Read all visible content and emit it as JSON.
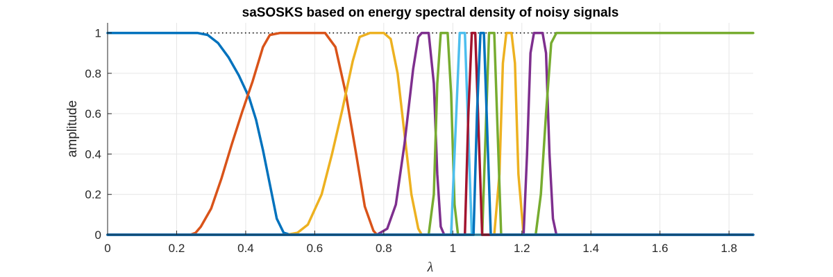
{
  "chart_data": {
    "type": "line",
    "title": "saSOSKS based on energy spectral density of noisy signals",
    "xlabel": "λ",
    "ylabel": "amplitude",
    "xlim": [
      0,
      1.87
    ],
    "ylim": [
      0,
      1.05
    ],
    "xticks": [
      "0",
      "0.2",
      "0.4",
      "0.6",
      "0.8",
      "1",
      "1.2",
      "1.4",
      "1.6",
      "1.8"
    ],
    "yticks": [
      "0",
      "0.2",
      "0.4",
      "0.6",
      "0.8",
      "1"
    ],
    "grid": true,
    "legend": "none",
    "reference_line": {
      "y": 1,
      "style": "dotted",
      "color": "#000000"
    },
    "series": [
      {
        "color": "#0072BD",
        "points": [
          [
            0,
            1
          ],
          [
            0.26,
            1
          ],
          [
            0.29,
            0.99
          ],
          [
            0.32,
            0.95
          ],
          [
            0.35,
            0.88
          ],
          [
            0.38,
            0.79
          ],
          [
            0.41,
            0.68
          ],
          [
            0.43,
            0.57
          ],
          [
            0.45,
            0.42
          ],
          [
            0.47,
            0.25
          ],
          [
            0.49,
            0.08
          ],
          [
            0.51,
            0.01
          ],
          [
            0.53,
            0
          ],
          [
            1.87,
            0
          ]
        ]
      },
      {
        "color": "#D95319",
        "points": [
          [
            0,
            0
          ],
          [
            0.24,
            0
          ],
          [
            0.255,
            0.01
          ],
          [
            0.27,
            0.04
          ],
          [
            0.3,
            0.13
          ],
          [
            0.33,
            0.28
          ],
          [
            0.36,
            0.45
          ],
          [
            0.39,
            0.61
          ],
          [
            0.42,
            0.76
          ],
          [
            0.45,
            0.93
          ],
          [
            0.47,
            0.99
          ],
          [
            0.5,
            1
          ],
          [
            0.63,
            1
          ],
          [
            0.66,
            0.93
          ],
          [
            0.69,
            0.7
          ],
          [
            0.72,
            0.4
          ],
          [
            0.745,
            0.14
          ],
          [
            0.77,
            0.02
          ],
          [
            0.78,
            0
          ],
          [
            1.87,
            0
          ]
        ]
      },
      {
        "color": "#EDB120",
        "points": [
          [
            0,
            0
          ],
          [
            0.52,
            0
          ],
          [
            0.55,
            0.01
          ],
          [
            0.58,
            0.05
          ],
          [
            0.62,
            0.2
          ],
          [
            0.65,
            0.4
          ],
          [
            0.68,
            0.62
          ],
          [
            0.71,
            0.86
          ],
          [
            0.73,
            0.98
          ],
          [
            0.76,
            1
          ],
          [
            0.8,
            1
          ],
          [
            0.82,
            0.97
          ],
          [
            0.84,
            0.8
          ],
          [
            0.86,
            0.5
          ],
          [
            0.88,
            0.2
          ],
          [
            0.9,
            0.03
          ],
          [
            0.91,
            0
          ],
          [
            1.12,
            0
          ],
          [
            1.135,
            0.3
          ],
          [
            1.145,
            0.85
          ],
          [
            1.155,
            1
          ],
          [
            1.17,
            1
          ],
          [
            1.18,
            0.85
          ],
          [
            1.19,
            0.3
          ],
          [
            1.205,
            0
          ],
          [
            1.87,
            0
          ]
        ]
      },
      {
        "color": "#7E2F8E",
        "points": [
          [
            0,
            0
          ],
          [
            0.78,
            0
          ],
          [
            0.81,
            0.03
          ],
          [
            0.835,
            0.15
          ],
          [
            0.86,
            0.45
          ],
          [
            0.885,
            0.82
          ],
          [
            0.9,
            0.98
          ],
          [
            0.91,
            1
          ],
          [
            0.93,
            1
          ],
          [
            0.945,
            0.75
          ],
          [
            0.955,
            0.3
          ],
          [
            0.965,
            0.04
          ],
          [
            0.975,
            0
          ],
          [
            1.205,
            0
          ],
          [
            1.215,
            0.4
          ],
          [
            1.225,
            0.9
          ],
          [
            1.235,
            1
          ],
          [
            1.26,
            1
          ],
          [
            1.27,
            0.9
          ],
          [
            1.28,
            0.4
          ],
          [
            1.29,
            0.08
          ],
          [
            1.3,
            0
          ],
          [
            1.87,
            0
          ]
        ]
      },
      {
        "color": "#77AC30",
        "points": [
          [
            0,
            0
          ],
          [
            0.93,
            0
          ],
          [
            0.945,
            0.2
          ],
          [
            0.955,
            0.75
          ],
          [
            0.965,
            1
          ],
          [
            0.985,
            1
          ],
          [
            0.995,
            0.7
          ],
          [
            1.005,
            0.15
          ],
          [
            1.015,
            0
          ],
          [
            1.085,
            0
          ],
          [
            1.095,
            0.5
          ],
          [
            1.105,
            1
          ],
          [
            1.12,
            1
          ],
          [
            1.13,
            0.5
          ],
          [
            1.14,
            0
          ],
          [
            1.24,
            0
          ],
          [
            1.255,
            0.2
          ],
          [
            1.27,
            0.6
          ],
          [
            1.285,
            0.95
          ],
          [
            1.3,
            1
          ],
          [
            1.87,
            1
          ]
        ]
      },
      {
        "color": "#4DBEEE",
        "points": [
          [
            0,
            0
          ],
          [
            0.995,
            0
          ],
          [
            1.01,
            0.6
          ],
          [
            1.02,
            1
          ],
          [
            1.035,
            1
          ],
          [
            1.045,
            0.5
          ],
          [
            1.055,
            0
          ],
          [
            1.87,
            0
          ]
        ]
      },
      {
        "color": "#A2142F",
        "points": [
          [
            0,
            0
          ],
          [
            1.035,
            0
          ],
          [
            1.045,
            0.6
          ],
          [
            1.055,
            1
          ],
          [
            1.065,
            1
          ],
          [
            1.075,
            0.5
          ],
          [
            1.085,
            0
          ],
          [
            1.87,
            0
          ]
        ]
      },
      {
        "color": "#0072BD",
        "points": [
          [
            0,
            0
          ],
          [
            1.06,
            0
          ],
          [
            1.07,
            0.6
          ],
          [
            1.08,
            1
          ],
          [
            1.09,
            1
          ],
          [
            1.1,
            0.5
          ],
          [
            1.11,
            0
          ],
          [
            1.87,
            0
          ]
        ]
      }
    ]
  }
}
